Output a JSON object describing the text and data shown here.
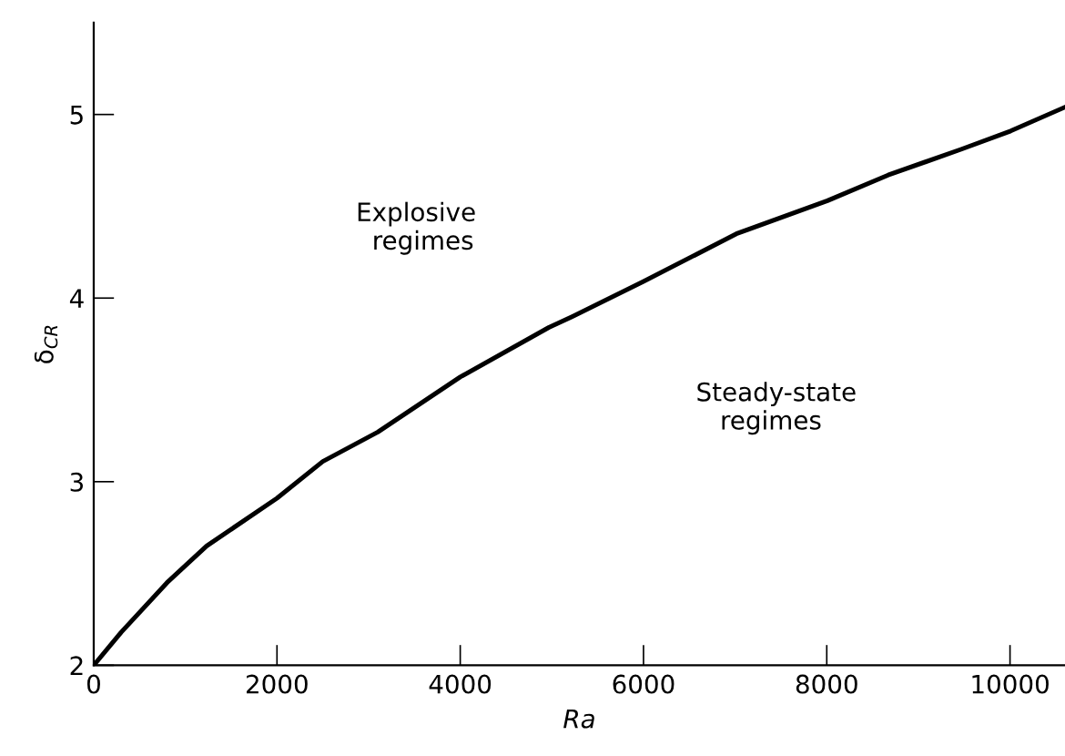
{
  "chart_data": {
    "type": "line",
    "xlabel": "Ra",
    "ylabel": "δ$_{CR}$",
    "x": [
      0,
      300,
      800,
      1233,
      2000,
      2500,
      3100,
      4000,
      4967,
      5225,
      6000,
      7013,
      8007,
      8670,
      9464,
      10007,
      10600
    ],
    "series": [
      {
        "color": "#000000",
        "values": [
          2.0,
          2.18,
          2.45,
          2.65,
          2.91,
          3.11,
          3.27,
          3.57,
          3.84,
          3.9,
          4.09,
          4.35,
          4.53,
          4.67,
          4.81,
          4.91,
          5.04
        ]
      }
    ],
    "xlim": [
      0,
      10600
    ],
    "ylim": [
      2,
      5.5
    ],
    "xticks": [
      0,
      2000,
      4000,
      6000,
      8000,
      10000
    ],
    "yticks": [
      2,
      3,
      4,
      5
    ],
    "grid": false,
    "legend": false,
    "marker": "none",
    "line_style": "solid",
    "annotations": [
      "Explosive\n  regimes",
      "Steady-state\n   regimes"
    ]
  }
}
